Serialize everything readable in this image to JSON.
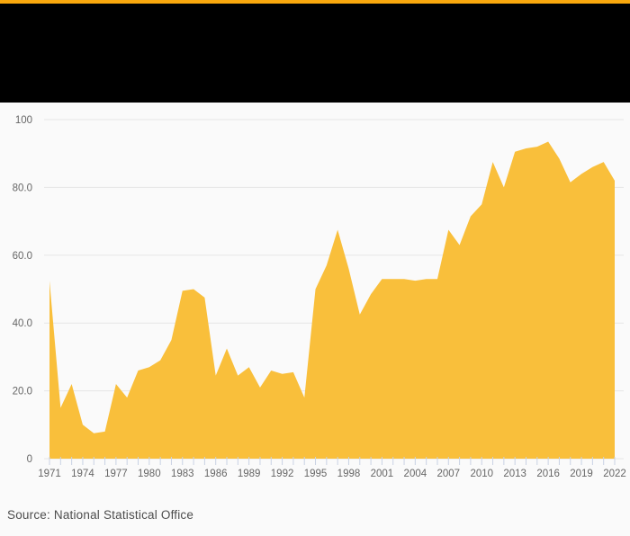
{
  "header": {
    "background_color": "#000000",
    "accent_line_color": "#f9a80d"
  },
  "chart_data": {
    "type": "area",
    "title": "",
    "xlabel": "",
    "ylabel": "",
    "ylim": [
      0,
      100
    ],
    "grid": true,
    "legend": "none",
    "series_color": "#f9bf3b",
    "grid_color": "#e6e6e6",
    "tick_mark_color": "#c9d2e4",
    "axis_label_color": "#666666",
    "x": [
      1971,
      1972,
      1973,
      1974,
      1975,
      1976,
      1977,
      1978,
      1979,
      1980,
      1981,
      1982,
      1983,
      1984,
      1985,
      1986,
      1987,
      1988,
      1989,
      1990,
      1991,
      1992,
      1993,
      1994,
      1995,
      1996,
      1997,
      1998,
      1999,
      2000,
      2001,
      2002,
      2003,
      2004,
      2005,
      2006,
      2007,
      2008,
      2009,
      2010,
      2011,
      2012,
      2013,
      2014,
      2015,
      2016,
      2017,
      2018,
      2019,
      2020,
      2021,
      2022
    ],
    "values": [
      52.5,
      15,
      22,
      10,
      7.5,
      8,
      22,
      18,
      26,
      27,
      29,
      35,
      49.5,
      50,
      47.5,
      24.5,
      32.5,
      24.5,
      27,
      21,
      26,
      25,
      25.5,
      18,
      50,
      57,
      67.5,
      56,
      42.5,
      48.5,
      53,
      53,
      53,
      52.5,
      53,
      53,
      67.5,
      63,
      71.5,
      75,
      87.5,
      80,
      90.5,
      91.5,
      92,
      93.5,
      88.5,
      81.5,
      84,
      86,
      87.5,
      82
    ],
    "y_tick_values": [
      0,
      20,
      40,
      60,
      80,
      100
    ],
    "y_tick_labels": [
      "0",
      "20.0",
      "40.0",
      "60.0",
      "80.0",
      "100"
    ],
    "x_tick_labels": [
      "1971",
      "1974",
      "1977",
      "1980",
      "1983",
      "1986",
      "1989",
      "1992",
      "1995",
      "1998",
      "2001",
      "2004",
      "2007",
      "2010",
      "2013",
      "2016",
      "2019",
      "2022"
    ]
  },
  "footer": {
    "source": "Source: National Statistical Office"
  }
}
